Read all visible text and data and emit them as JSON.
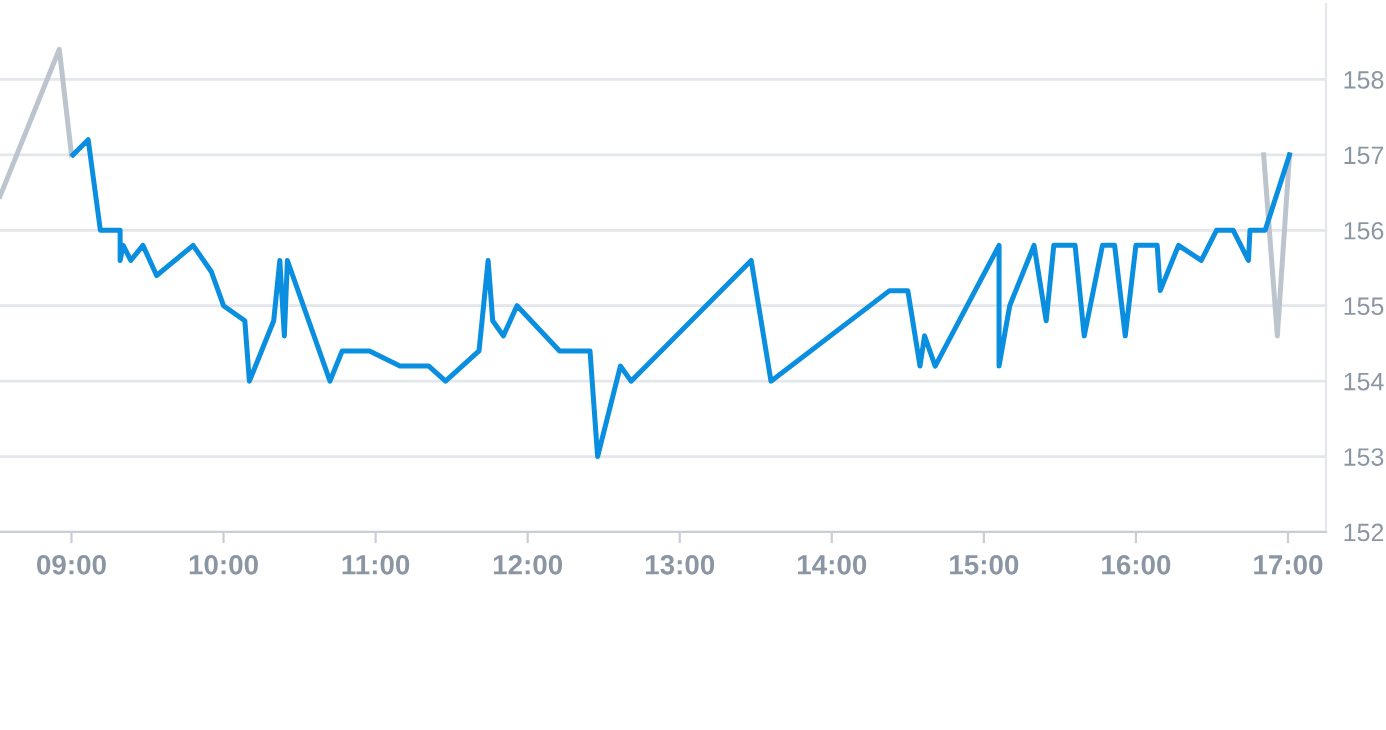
{
  "chart_data": {
    "type": "line",
    "xlim": [
      8.53,
      17.25
    ],
    "ylim": [
      152,
      159
    ],
    "xticks": [
      {
        "value": 9,
        "label": "09:00"
      },
      {
        "value": 10,
        "label": "10:00"
      },
      {
        "value": 11,
        "label": "11:00"
      },
      {
        "value": 12,
        "label": "12:00"
      },
      {
        "value": 13,
        "label": "13:00"
      },
      {
        "value": 14,
        "label": "14:00"
      },
      {
        "value": 15,
        "label": "15:00"
      },
      {
        "value": 16,
        "label": "16:00"
      },
      {
        "value": 17,
        "label": "17:00"
      }
    ],
    "yticks": [
      152,
      153,
      154,
      155,
      156,
      157,
      158
    ],
    "grid": "y",
    "legend": false,
    "marker": "none",
    "line_style": "solid",
    "series": [
      {
        "color": "#bcc5ce",
        "x": [
          8.53,
          8.92,
          9.0
        ],
        "values": [
          156.45,
          158.4,
          157.0
        ]
      },
      {
        "color": "#bcc5ce",
        "x": [
          16.84,
          16.93,
          17.01
        ],
        "values": [
          157.0,
          154.6,
          157.0
        ]
      },
      {
        "color": "#0a8fe0",
        "x": [
          9.01,
          9.11,
          9.19,
          9.32,
          9.32,
          9.34,
          9.39,
          9.47,
          9.56,
          9.8,
          9.92,
          10.0,
          10.14,
          10.17,
          10.33,
          10.37,
          10.4,
          10.42,
          10.7,
          10.78,
          10.96,
          11.16,
          11.35,
          11.46,
          11.68,
          11.74,
          11.77,
          11.84,
          11.93,
          12.21,
          12.41,
          12.46,
          12.61,
          12.68,
          13.47,
          13.6,
          14.38,
          14.5,
          14.58,
          14.61,
          14.68,
          15.1,
          15.1,
          15.17,
          15.33,
          15.41,
          15.46,
          15.6,
          15.66,
          15.78,
          15.86,
          15.93,
          16.0,
          16.14,
          16.16,
          16.28,
          16.43,
          16.53,
          16.64,
          16.74,
          16.75,
          16.85,
          17.01
        ],
        "values": [
          157.0,
          157.2,
          156.0,
          156.0,
          155.6,
          155.8,
          155.6,
          155.8,
          155.4,
          155.8,
          155.45,
          155.0,
          154.8,
          154.0,
          154.8,
          155.6,
          154.6,
          155.6,
          154.0,
          154.4,
          154.4,
          154.2,
          154.2,
          154.0,
          154.4,
          155.6,
          154.8,
          154.6,
          155.0,
          154.4,
          154.4,
          153.0,
          154.2,
          154.0,
          155.6,
          154.0,
          155.2,
          155.2,
          154.2,
          154.6,
          154.2,
          155.8,
          154.2,
          155.0,
          155.8,
          154.8,
          155.8,
          155.8,
          154.6,
          155.8,
          155.8,
          154.6,
          155.8,
          155.8,
          155.2,
          155.8,
          155.6,
          156.0,
          156.0,
          155.6,
          156.0,
          156.0,
          157.0
        ]
      }
    ]
  }
}
